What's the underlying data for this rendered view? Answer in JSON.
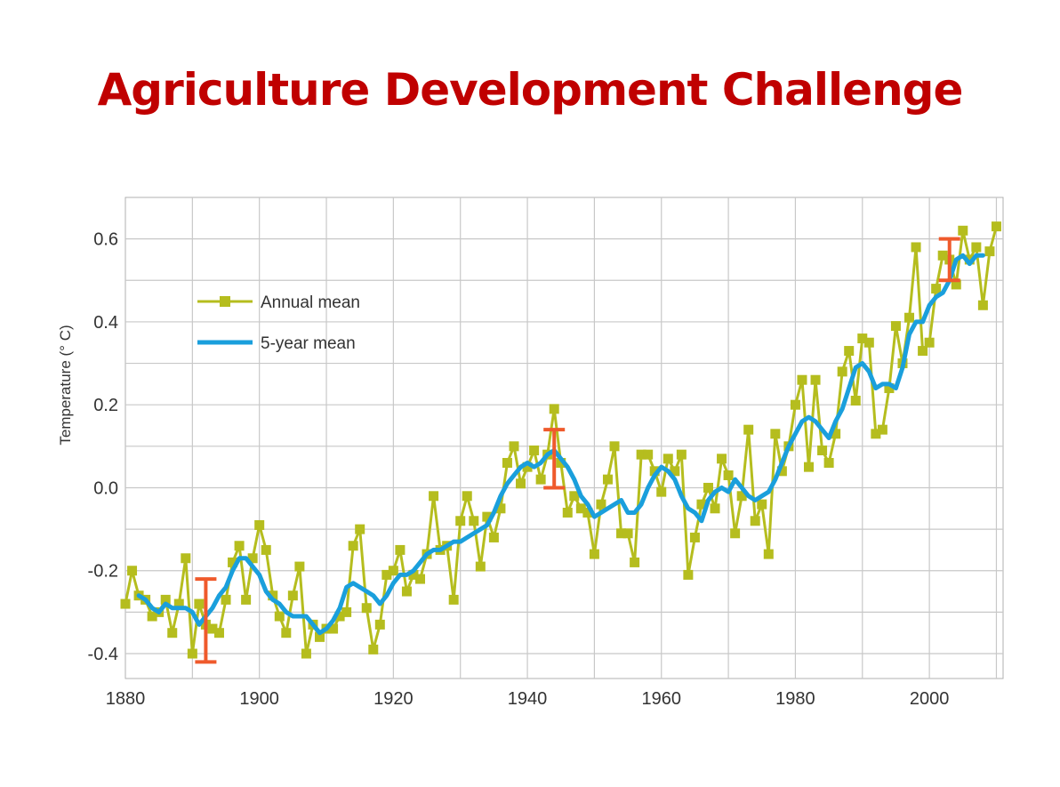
{
  "slide": {
    "title": "Agriculture Development Challenge"
  },
  "colors": {
    "title": "#c00000",
    "annual": "#b5bd1e",
    "five_year": "#1a9fdc",
    "error_bar": "#ef5a2c",
    "grid": "#c8c8c8"
  },
  "chart_data": {
    "type": "line",
    "title": "",
    "xlabel": "",
    "ylabel": "Temperature (° C)",
    "xlim": [
      1880,
      2011
    ],
    "ylim": [
      -0.46,
      0.7
    ],
    "x_ticks": [
      1880,
      1900,
      1920,
      1940,
      1960,
      1980,
      2000
    ],
    "y_ticks": [
      -0.4,
      -0.2,
      0.0,
      0.2,
      0.4,
      0.6
    ],
    "y_tick_labels": [
      "-0.4",
      "-0.2",
      "0.0",
      "0.2",
      "0.4",
      "0.6"
    ],
    "grid": true,
    "legend_position": "upper-left",
    "series": [
      {
        "name": "Annual mean",
        "style": "line-with-square-markers",
        "x": [
          1880,
          1881,
          1882,
          1883,
          1884,
          1885,
          1886,
          1887,
          1888,
          1889,
          1890,
          1891,
          1892,
          1893,
          1894,
          1895,
          1896,
          1897,
          1898,
          1899,
          1900,
          1901,
          1902,
          1903,
          1904,
          1905,
          1906,
          1907,
          1908,
          1909,
          1910,
          1911,
          1912,
          1913,
          1914,
          1915,
          1916,
          1917,
          1918,
          1919,
          1920,
          1921,
          1922,
          1923,
          1924,
          1925,
          1926,
          1927,
          1928,
          1929,
          1930,
          1931,
          1932,
          1933,
          1934,
          1935,
          1936,
          1937,
          1938,
          1939,
          1940,
          1941,
          1942,
          1943,
          1944,
          1945,
          1946,
          1947,
          1948,
          1949,
          1950,
          1951,
          1952,
          1953,
          1954,
          1955,
          1956,
          1957,
          1958,
          1959,
          1960,
          1961,
          1962,
          1963,
          1964,
          1965,
          1966,
          1967,
          1968,
          1969,
          1970,
          1971,
          1972,
          1973,
          1974,
          1975,
          1976,
          1977,
          1978,
          1979,
          1980,
          1981,
          1982,
          1983,
          1984,
          1985,
          1986,
          1987,
          1988,
          1989,
          1990,
          1991,
          1992,
          1993,
          1994,
          1995,
          1996,
          1997,
          1998,
          1999,
          2000,
          2001,
          2002,
          2003,
          2004,
          2005,
          2006,
          2007,
          2008,
          2009,
          2010
        ],
        "values": [
          -0.28,
          -0.2,
          -0.26,
          -0.27,
          -0.31,
          -0.3,
          -0.27,
          -0.35,
          -0.28,
          -0.17,
          -0.4,
          -0.28,
          -0.33,
          -0.34,
          -0.35,
          -0.27,
          -0.18,
          -0.14,
          -0.27,
          -0.17,
          -0.09,
          -0.15,
          -0.26,
          -0.31,
          -0.35,
          -0.26,
          -0.19,
          -0.4,
          -0.33,
          -0.36,
          -0.34,
          -0.34,
          -0.31,
          -0.3,
          -0.14,
          -0.1,
          -0.29,
          -0.39,
          -0.33,
          -0.21,
          -0.2,
          -0.15,
          -0.25,
          -0.21,
          -0.22,
          -0.16,
          -0.02,
          -0.15,
          -0.14,
          -0.27,
          -0.08,
          -0.02,
          -0.08,
          -0.19,
          -0.07,
          -0.12,
          -0.05,
          0.06,
          0.1,
          0.01,
          0.05,
          0.09,
          0.02,
          0.08,
          0.19,
          0.06,
          -0.06,
          -0.02,
          -0.05,
          -0.06,
          -0.16,
          -0.04,
          0.02,
          0.1,
          -0.11,
          -0.11,
          -0.18,
          0.08,
          0.08,
          0.04,
          -0.01,
          0.07,
          0.04,
          0.08,
          -0.21,
          -0.12,
          -0.04,
          0.0,
          -0.05,
          0.07,
          0.03,
          -0.11,
          -0.02,
          0.14,
          -0.08,
          -0.04,
          -0.16,
          0.13,
          0.04,
          0.1,
          0.2,
          0.26,
          0.05,
          0.26,
          0.09,
          0.06,
          0.13,
          0.28,
          0.33,
          0.21,
          0.36,
          0.35,
          0.13,
          0.14,
          0.24,
          0.39,
          0.3,
          0.41,
          0.58,
          0.33,
          0.35,
          0.48,
          0.56,
          0.55,
          0.49,
          0.62,
          0.55,
          0.58,
          0.44,
          0.57,
          0.63
        ]
      },
      {
        "name": "5-year mean",
        "style": "thick-line",
        "x": [
          1882,
          1883,
          1884,
          1885,
          1886,
          1887,
          1888,
          1889,
          1890,
          1891,
          1892,
          1893,
          1894,
          1895,
          1896,
          1897,
          1898,
          1899,
          1900,
          1901,
          1902,
          1903,
          1904,
          1905,
          1906,
          1907,
          1908,
          1909,
          1910,
          1911,
          1912,
          1913,
          1914,
          1915,
          1916,
          1917,
          1918,
          1919,
          1920,
          1921,
          1922,
          1923,
          1924,
          1925,
          1926,
          1927,
          1928,
          1929,
          1930,
          1931,
          1932,
          1933,
          1934,
          1935,
          1936,
          1937,
          1938,
          1939,
          1940,
          1941,
          1942,
          1943,
          1944,
          1945,
          1946,
          1947,
          1948,
          1949,
          1950,
          1951,
          1952,
          1953,
          1954,
          1955,
          1956,
          1957,
          1958,
          1959,
          1960,
          1961,
          1962,
          1963,
          1964,
          1965,
          1966,
          1967,
          1968,
          1969,
          1970,
          1971,
          1972,
          1973,
          1974,
          1975,
          1976,
          1977,
          1978,
          1979,
          1980,
          1981,
          1982,
          1983,
          1984,
          1985,
          1986,
          1987,
          1988,
          1989,
          1990,
          1991,
          1992,
          1993,
          1994,
          1995,
          1996,
          1997,
          1998,
          1999,
          2000,
          2001,
          2002,
          2003,
          2004,
          2005,
          2006,
          2007,
          2008
        ],
        "values": [
          -0.26,
          -0.27,
          -0.29,
          -0.3,
          -0.28,
          -0.29,
          -0.29,
          -0.29,
          -0.3,
          -0.33,
          -0.31,
          -0.29,
          -0.26,
          -0.24,
          -0.2,
          -0.17,
          -0.17,
          -0.19,
          -0.21,
          -0.25,
          -0.27,
          -0.28,
          -0.3,
          -0.31,
          -0.31,
          -0.31,
          -0.33,
          -0.35,
          -0.34,
          -0.32,
          -0.29,
          -0.24,
          -0.23,
          -0.24,
          -0.25,
          -0.26,
          -0.28,
          -0.26,
          -0.23,
          -0.21,
          -0.21,
          -0.2,
          -0.18,
          -0.16,
          -0.15,
          -0.15,
          -0.14,
          -0.13,
          -0.13,
          -0.12,
          -0.11,
          -0.1,
          -0.09,
          -0.06,
          -0.02,
          0.01,
          0.03,
          0.05,
          0.06,
          0.05,
          0.06,
          0.08,
          0.09,
          0.07,
          0.05,
          0.02,
          -0.02,
          -0.04,
          -0.07,
          -0.06,
          -0.05,
          -0.04,
          -0.03,
          -0.06,
          -0.06,
          -0.04,
          0.0,
          0.03,
          0.05,
          0.04,
          0.02,
          -0.02,
          -0.05,
          -0.06,
          -0.08,
          -0.03,
          -0.01,
          0.0,
          -0.01,
          0.02,
          0.0,
          -0.02,
          -0.03,
          -0.02,
          -0.01,
          0.02,
          0.06,
          0.1,
          0.13,
          0.16,
          0.17,
          0.16,
          0.14,
          0.12,
          0.16,
          0.19,
          0.24,
          0.29,
          0.3,
          0.28,
          0.24,
          0.25,
          0.25,
          0.24,
          0.29,
          0.37,
          0.4,
          0.4,
          0.44,
          0.46,
          0.47,
          0.5,
          0.55,
          0.56,
          0.54,
          0.56,
          0.56
        ]
      }
    ],
    "error_bars": [
      {
        "x": 1892,
        "low": -0.42,
        "high": -0.22
      },
      {
        "x": 1944,
        "low": 0.0,
        "high": 0.14
      },
      {
        "x": 2003,
        "low": 0.5,
        "high": 0.6
      }
    ]
  }
}
